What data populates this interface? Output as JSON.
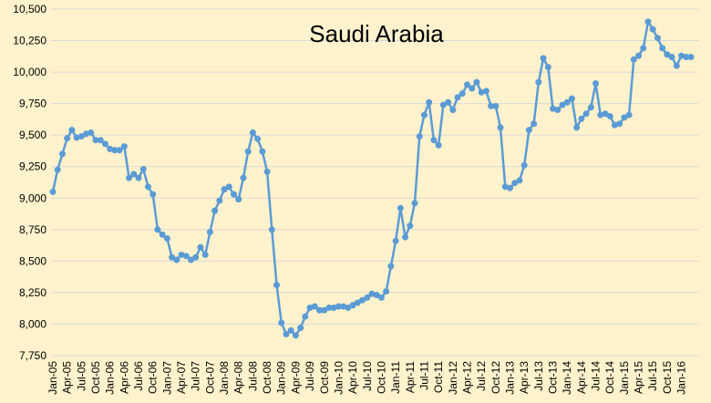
{
  "chart_data": {
    "type": "line",
    "title": "Saudi Arabia",
    "xlabel": "",
    "ylabel": "",
    "ylim": [
      7750,
      10500
    ],
    "y_ticks": [
      "7,750",
      "8,000",
      "8,250",
      "8,500",
      "8,750",
      "9,000",
      "9,250",
      "9,500",
      "9,750",
      "10,000",
      "10,250",
      "10,500"
    ],
    "x_start": "Jan-05",
    "x_tick_labels": [
      "Jan-05",
      "Apr-05",
      "Jul-05",
      "Oct-05",
      "Jan-06",
      "Apr-06",
      "Jul-06",
      "Oct-06",
      "Jan-07",
      "Apr-07",
      "Jul-07",
      "Oct-07",
      "Jan-08",
      "Apr-08",
      "Jul-08",
      "Oct-08",
      "Jan-09",
      "Apr-09",
      "Jul-09",
      "Oct-09",
      "Jan-10",
      "Apr-10",
      "Jul-10",
      "Oct-10",
      "Jan-11",
      "Apr-11",
      "Jul-11",
      "Oct-11",
      "Jan-12",
      "Apr-12",
      "Jul-12",
      "Oct-12",
      "Jan-13",
      "Apr-13",
      "Jul-13",
      "Oct-13",
      "Jan-14",
      "Apr-14",
      "Jul-14",
      "Oct-14",
      "Jan-15",
      "Apr-15",
      "Jul-15",
      "Oct-15",
      "Jan-16"
    ],
    "grid": true,
    "legend": "none",
    "line_color": "#5B9BD5",
    "background_color": "#FFF2CC",
    "series": [
      {
        "values": [
          9050,
          9225,
          9350,
          9475,
          9540,
          9480,
          9490,
          9510,
          9520,
          9460,
          9460,
          9430,
          9390,
          9380,
          9380,
          9410,
          9160,
          9190,
          9160,
          9230,
          9090,
          9030,
          8750,
          8710,
          8680,
          8530,
          8510,
          8550,
          8540,
          8510,
          8530,
          8610,
          8550,
          8730,
          8900,
          8980,
          9070,
          9090,
          9030,
          8990,
          9160,
          9370,
          9520,
          9470,
          9370,
          9210,
          8750,
          8310,
          8010,
          7920,
          7950,
          7910,
          7970,
          8060,
          8130,
          8140,
          8110,
          8110,
          8130,
          8130,
          8140,
          8140,
          8130,
          8150,
          8170,
          8190,
          8210,
          8240,
          8230,
          8210,
          8260,
          8460,
          8660,
          8920,
          8690,
          8780,
          8960,
          9490,
          9660,
          9760,
          9460,
          9420,
          9740,
          9760,
          9700,
          9800,
          9830,
          9900,
          9870,
          9920,
          9840,
          9850,
          9730,
          9730,
          9560,
          9090,
          9080,
          9120,
          9140,
          9260,
          9540,
          9590,
          9920,
          10110,
          10040,
          9710,
          9700,
          9740,
          9760,
          9790,
          9560,
          9630,
          9670,
          9720,
          9910,
          9660,
          9670,
          9650,
          9580,
          9590,
          9640,
          9660,
          10100,
          10130,
          10190,
          10400,
          10340,
          10270,
          10190,
          10140,
          10120,
          10050,
          10130,
          10120,
          10120
        ]
      }
    ]
  }
}
